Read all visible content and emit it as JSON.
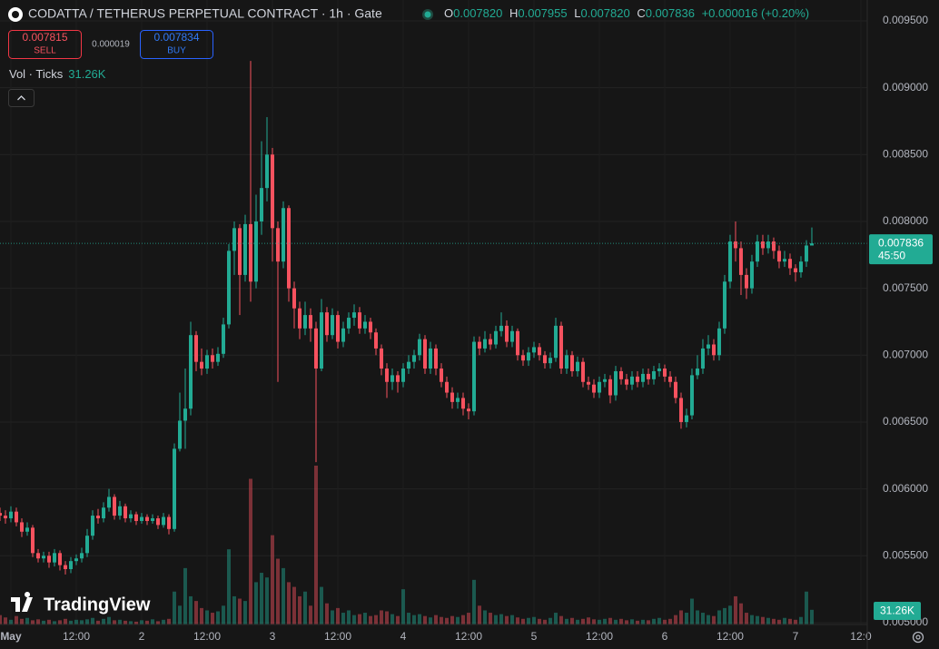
{
  "header": {
    "sell_price": "0.007815",
    "sell_label": "SELL",
    "spread": "0.000019",
    "buy_price": "0.007834",
    "buy_label": "BUY",
    "ohlc_legend": [
      {
        "label": "O",
        "value": "0.007820"
      },
      {
        "label": "H",
        "value": "0.007955"
      },
      {
        "label": "L",
        "value": "0.007820"
      },
      {
        "label": "C",
        "value": "0.007836"
      }
    ],
    "change": "+0.000016 (+0.20%)",
    "countdown": "45:50",
    "brand": "TradingView"
  },
  "chart_data": {
    "type": "candlestick",
    "title": "CODATTA / TETHERUS PERPETUAL CONTRACT · 1h · Gate",
    "up_color": "#22ab94",
    "down_color": "#f7525f",
    "grid": true,
    "xlim": [
      -2,
      157.17
    ],
    "ylim": [
      0.004986,
      0.009656
    ],
    "xticks": [
      {
        "value": 0,
        "label": "May"
      },
      {
        "value": 12,
        "label": "12:00"
      },
      {
        "value": 24,
        "label": "2"
      },
      {
        "value": 36,
        "label": "12:00"
      },
      {
        "value": 48,
        "label": "3"
      },
      {
        "value": 60,
        "label": "12:00"
      },
      {
        "value": 72,
        "label": "4"
      },
      {
        "value": 84,
        "label": "12:00"
      },
      {
        "value": 96,
        "label": "5"
      },
      {
        "value": 108,
        "label": "12:00"
      },
      {
        "value": 120,
        "label": "6"
      },
      {
        "value": 132,
        "label": "12:00"
      },
      {
        "value": 144,
        "label": "7"
      },
      {
        "value": 156,
        "label": "12:0"
      }
    ],
    "yticks": [
      {
        "value": 0.005,
        "label": "0.005000"
      },
      {
        "value": 0.0055,
        "label": "0.005500"
      },
      {
        "value": 0.006,
        "label": "0.006000"
      },
      {
        "value": 0.0065,
        "label": "0.006500"
      },
      {
        "value": 0.007,
        "label": "0.007000"
      },
      {
        "value": 0.0075,
        "label": "0.007500"
      },
      {
        "value": 0.008,
        "label": "0.008000"
      },
      {
        "value": 0.0085,
        "label": "0.008500"
      },
      {
        "value": 0.009,
        "label": "0.009000"
      },
      {
        "value": 0.0095,
        "label": "0.009500"
      }
    ],
    "x": [
      -2,
      -1,
      0,
      1,
      2,
      3,
      4,
      5,
      6,
      7,
      8,
      9,
      10,
      11,
      12,
      13,
      14,
      15,
      16,
      17,
      18,
      19,
      20,
      21,
      22,
      23,
      24,
      25,
      26,
      27,
      28,
      29,
      30,
      31,
      32,
      33,
      34,
      35,
      36,
      37,
      38,
      39,
      40,
      41,
      42,
      43,
      44,
      45,
      46,
      47,
      48,
      49,
      50,
      51,
      52,
      53,
      54,
      55,
      56,
      57,
      58,
      59,
      60,
      61,
      62,
      63,
      64,
      65,
      66,
      67,
      68,
      69,
      70,
      71,
      72,
      73,
      74,
      75,
      76,
      77,
      78,
      79,
      80,
      81,
      82,
      83,
      84,
      85,
      86,
      87,
      88,
      89,
      90,
      91,
      92,
      93,
      94,
      95,
      96,
      97,
      98,
      99,
      100,
      101,
      102,
      103,
      104,
      105,
      106,
      107,
      108,
      109,
      110,
      111,
      112,
      113,
      114,
      115,
      116,
      117,
      118,
      119,
      120,
      121,
      122,
      123,
      124,
      125,
      126,
      127,
      128,
      129,
      130,
      131,
      132,
      133,
      134,
      135,
      136,
      137,
      138,
      139,
      140,
      141,
      142,
      143,
      144,
      145,
      146,
      147
    ],
    "open": [
      0.00582,
      0.0058,
      0.00578,
      0.00583,
      0.00575,
      0.00568,
      0.00571,
      0.00552,
      0.00548,
      0.0055,
      0.00545,
      0.00552,
      0.00543,
      0.0054,
      0.00546,
      0.00548,
      0.00552,
      0.00565,
      0.0058,
      0.00578,
      0.00586,
      0.00594,
      0.0058,
      0.00587,
      0.00578,
      0.00581,
      0.00576,
      0.00579,
      0.00576,
      0.00578,
      0.00573,
      0.00579,
      0.0057,
      0.0063,
      0.00651,
      0.0066,
      0.00715,
      0.00695,
      0.0069,
      0.007,
      0.00695,
      0.00701,
      0.00723,
      0.00778,
      0.00795,
      0.0076,
      0.00798,
      0.00755,
      0.008,
      0.00825,
      0.0085,
      0.00795,
      0.0077,
      0.0081,
      0.0075,
      0.00735,
      0.0072,
      0.0073,
      0.0072,
      0.0069,
      0.00732,
      0.00715,
      0.0073,
      0.0071,
      0.0072,
      0.00728,
      0.00732,
      0.0072,
      0.00725,
      0.00717,
      0.00705,
      0.0069,
      0.0068,
      0.00685,
      0.0068,
      0.0069,
      0.00695,
      0.007,
      0.00712,
      0.0069,
      0.00705,
      0.0069,
      0.0068,
      0.00672,
      0.00665,
      0.00668,
      0.0066,
      0.00658,
      0.0071,
      0.00705,
      0.00712,
      0.00708,
      0.00718,
      0.00722,
      0.0071,
      0.00718,
      0.007,
      0.00696,
      0.00702,
      0.00706,
      0.007,
      0.00694,
      0.00698,
      0.00722,
      0.0069,
      0.007,
      0.00688,
      0.00695,
      0.0068,
      0.00678,
      0.00672,
      0.0068,
      0.00682,
      0.0067,
      0.00688,
      0.00682,
      0.00678,
      0.00684,
      0.0068,
      0.00686,
      0.00682,
      0.00688,
      0.0069,
      0.00684,
      0.0068,
      0.00668,
      0.0065,
      0.00655,
      0.00685,
      0.0069,
      0.00705,
      0.00708,
      0.007,
      0.0072,
      0.00755,
      0.00785,
      0.0078,
      0.0076,
      0.0075,
      0.0077,
      0.00785,
      0.0078,
      0.00785,
      0.00778,
      0.0077,
      0.00772,
      0.00765,
      0.00762,
      0.0077,
      0.00782
    ],
    "high": [
      0.00586,
      0.00584,
      0.00587,
      0.00586,
      0.00578,
      0.00575,
      0.00573,
      0.00555,
      0.00553,
      0.00553,
      0.00555,
      0.00554,
      0.00546,
      0.00549,
      0.00551,
      0.00556,
      0.0057,
      0.00584,
      0.00585,
      0.0059,
      0.006,
      0.00596,
      0.00591,
      0.00589,
      0.00584,
      0.00583,
      0.00582,
      0.00581,
      0.00581,
      0.0058,
      0.00582,
      0.00581,
      0.00634,
      0.00672,
      0.0069,
      0.00725,
      0.00718,
      0.00705,
      0.00704,
      0.00705,
      0.00706,
      0.00728,
      0.00783,
      0.008,
      0.00798,
      0.00805,
      0.0092,
      0.0082,
      0.0086,
      0.00878,
      0.00855,
      0.008,
      0.00815,
      0.00812,
      0.00755,
      0.0074,
      0.0074,
      0.00735,
      0.00725,
      0.00742,
      0.00736,
      0.00735,
      0.00733,
      0.00725,
      0.00732,
      0.00738,
      0.00736,
      0.0073,
      0.00728,
      0.0072,
      0.00708,
      0.00694,
      0.0069,
      0.00688,
      0.00694,
      0.007,
      0.00704,
      0.00716,
      0.00715,
      0.0071,
      0.00708,
      0.00694,
      0.00684,
      0.00676,
      0.00672,
      0.00672,
      0.00664,
      0.00714,
      0.00714,
      0.00718,
      0.00716,
      0.00722,
      0.00732,
      0.00726,
      0.00722,
      0.0072,
      0.00704,
      0.00706,
      0.0071,
      0.00709,
      0.00703,
      0.00702,
      0.00728,
      0.00725,
      0.00704,
      0.00703,
      0.00699,
      0.00698,
      0.00684,
      0.00682,
      0.00684,
      0.00686,
      0.00685,
      0.00692,
      0.00691,
      0.00686,
      0.00688,
      0.00688,
      0.0069,
      0.0069,
      0.00692,
      0.00694,
      0.00693,
      0.00688,
      0.00684,
      0.00672,
      0.0066,
      0.0069,
      0.007,
      0.00712,
      0.00715,
      0.00712,
      0.00725,
      0.0076,
      0.0079,
      0.008,
      0.00785,
      0.00765,
      0.00775,
      0.0079,
      0.0079,
      0.0079,
      0.00788,
      0.00782,
      0.00778,
      0.00776,
      0.00768,
      0.00774,
      0.00786,
      0.007955
    ],
    "low": [
      0.00576,
      0.00574,
      0.00575,
      0.00572,
      0.00564,
      0.00565,
      0.00549,
      0.00545,
      0.00545,
      0.00541,
      0.00542,
      0.00539,
      0.00536,
      0.00537,
      0.00543,
      0.00545,
      0.00549,
      0.00562,
      0.00574,
      0.00575,
      0.00583,
      0.00577,
      0.00577,
      0.00575,
      0.00575,
      0.00573,
      0.00574,
      0.00573,
      0.00574,
      0.0057,
      0.00571,
      0.00566,
      0.00568,
      0.00628,
      0.0063,
      0.00655,
      0.00688,
      0.00685,
      0.00686,
      0.0069,
      0.00692,
      0.00698,
      0.0072,
      0.0076,
      0.0073,
      0.00755,
      0.0074,
      0.0075,
      0.0079,
      0.00815,
      0.0077,
      0.0068,
      0.00765,
      0.0074,
      0.0072,
      0.00712,
      0.00715,
      0.0071,
      0.0062,
      0.00688,
      0.0071,
      0.00712,
      0.00705,
      0.00706,
      0.00716,
      0.00722,
      0.00716,
      0.00716,
      0.00712,
      0.007,
      0.00685,
      0.00668,
      0.00674,
      0.00672,
      0.00676,
      0.00686,
      0.0069,
      0.00696,
      0.00686,
      0.00686,
      0.00685,
      0.00676,
      0.00668,
      0.0066,
      0.0066,
      0.00655,
      0.00652,
      0.00655,
      0.007,
      0.00702,
      0.00704,
      0.00705,
      0.00714,
      0.00706,
      0.00706,
      0.00696,
      0.00692,
      0.00692,
      0.00698,
      0.00696,
      0.0069,
      0.0069,
      0.00695,
      0.00686,
      0.00686,
      0.00684,
      0.00684,
      0.00676,
      0.00674,
      0.00668,
      0.00668,
      0.00676,
      0.00664,
      0.00666,
      0.00678,
      0.00674,
      0.00674,
      0.00676,
      0.00676,
      0.00678,
      0.00678,
      0.00684,
      0.0068,
      0.00676,
      0.00664,
      0.00645,
      0.00646,
      0.00652,
      0.00682,
      0.00686,
      0.007,
      0.00696,
      0.00696,
      0.00716,
      0.0075,
      0.0077,
      0.00745,
      0.00742,
      0.00746,
      0.00766,
      0.00775,
      0.00776,
      0.00772,
      0.00765,
      0.00766,
      0.0076,
      0.00755,
      0.00758,
      0.00766,
      0.00782
    ],
    "close": [
      0.0058,
      0.00578,
      0.00583,
      0.00575,
      0.00568,
      0.00571,
      0.00552,
      0.00548,
      0.0055,
      0.00545,
      0.00552,
      0.00543,
      0.0054,
      0.00546,
      0.00548,
      0.00552,
      0.00565,
      0.0058,
      0.00578,
      0.00586,
      0.00594,
      0.0058,
      0.00587,
      0.00578,
      0.00581,
      0.00576,
      0.00579,
      0.00576,
      0.00578,
      0.00573,
      0.00579,
      0.0057,
      0.0063,
      0.00651,
      0.0066,
      0.00715,
      0.00695,
      0.0069,
      0.007,
      0.00695,
      0.00701,
      0.00723,
      0.00778,
      0.00795,
      0.0076,
      0.00798,
      0.00755,
      0.008,
      0.00825,
      0.0085,
      0.00795,
      0.0077,
      0.0081,
      0.0075,
      0.00735,
      0.0072,
      0.0073,
      0.0072,
      0.0069,
      0.00732,
      0.00715,
      0.0073,
      0.0071,
      0.0072,
      0.00728,
      0.00732,
      0.0072,
      0.00725,
      0.00717,
      0.00705,
      0.0069,
      0.0068,
      0.00685,
      0.0068,
      0.0069,
      0.00695,
      0.007,
      0.00712,
      0.0069,
      0.00705,
      0.0069,
      0.0068,
      0.00672,
      0.00665,
      0.00668,
      0.0066,
      0.00658,
      0.0071,
      0.00705,
      0.00712,
      0.00708,
      0.00718,
      0.00722,
      0.0071,
      0.00718,
      0.007,
      0.00696,
      0.00702,
      0.00706,
      0.007,
      0.00694,
      0.00698,
      0.00722,
      0.0069,
      0.007,
      0.00688,
      0.00695,
      0.0068,
      0.00678,
      0.00672,
      0.0068,
      0.00682,
      0.0067,
      0.00688,
      0.00682,
      0.00678,
      0.00684,
      0.0068,
      0.00686,
      0.00682,
      0.00688,
      0.0069,
      0.00684,
      0.0068,
      0.00668,
      0.0065,
      0.00655,
      0.00685,
      0.0069,
      0.00705,
      0.00708,
      0.007,
      0.0072,
      0.00755,
      0.00785,
      0.0078,
      0.0076,
      0.0075,
      0.0077,
      0.00785,
      0.0078,
      0.00785,
      0.00778,
      0.0077,
      0.00772,
      0.00765,
      0.00762,
      0.0077,
      0.00782,
      0.007836
    ],
    "volume": {
      "name": "Vol · Ticks",
      "last_label": "31.26K",
      "values": [
        20000,
        15000,
        10000,
        18000,
        12000,
        14000,
        9000,
        11000,
        8000,
        10000,
        7000,
        9000,
        12000,
        8000,
        10000,
        9000,
        11000,
        14000,
        8000,
        12000,
        16000,
        9000,
        10000,
        8000,
        7000,
        6000,
        9000,
        8000,
        11000,
        7000,
        10000,
        12000,
        70000,
        40000,
        120000,
        60000,
        50000,
        35000,
        30000,
        25000,
        28000,
        40000,
        160000,
        60000,
        55000,
        50000,
        310000,
        90000,
        110000,
        100000,
        190000,
        140000,
        120000,
        90000,
        80000,
        60000,
        70000,
        40000,
        338000,
        80000,
        45000,
        30000,
        35000,
        25000,
        30000,
        20000,
        22000,
        25000,
        18000,
        20000,
        30000,
        28000,
        22000,
        18000,
        75000,
        25000,
        20000,
        22000,
        18000,
        15000,
        20000,
        16000,
        14000,
        18000,
        16000,
        20000,
        25000,
        95000,
        40000,
        30000,
        25000,
        20000,
        22000,
        18000,
        20000,
        15000,
        12000,
        14000,
        16000,
        12000,
        10000,
        14000,
        25000,
        18000,
        12000,
        14000,
        10000,
        12000,
        15000,
        11000,
        10000,
        12000,
        14000,
        10000,
        12000,
        9000,
        11000,
        8000,
        10000,
        9000,
        12000,
        14000,
        10000,
        12000,
        20000,
        30000,
        25000,
        55000,
        30000,
        25000,
        20000,
        18000,
        30000,
        35000,
        40000,
        60000,
        45000,
        25000,
        20000,
        18000,
        16000,
        14000,
        12000,
        10000,
        14000,
        12000,
        10000,
        16000,
        70000,
        31260
      ]
    }
  }
}
